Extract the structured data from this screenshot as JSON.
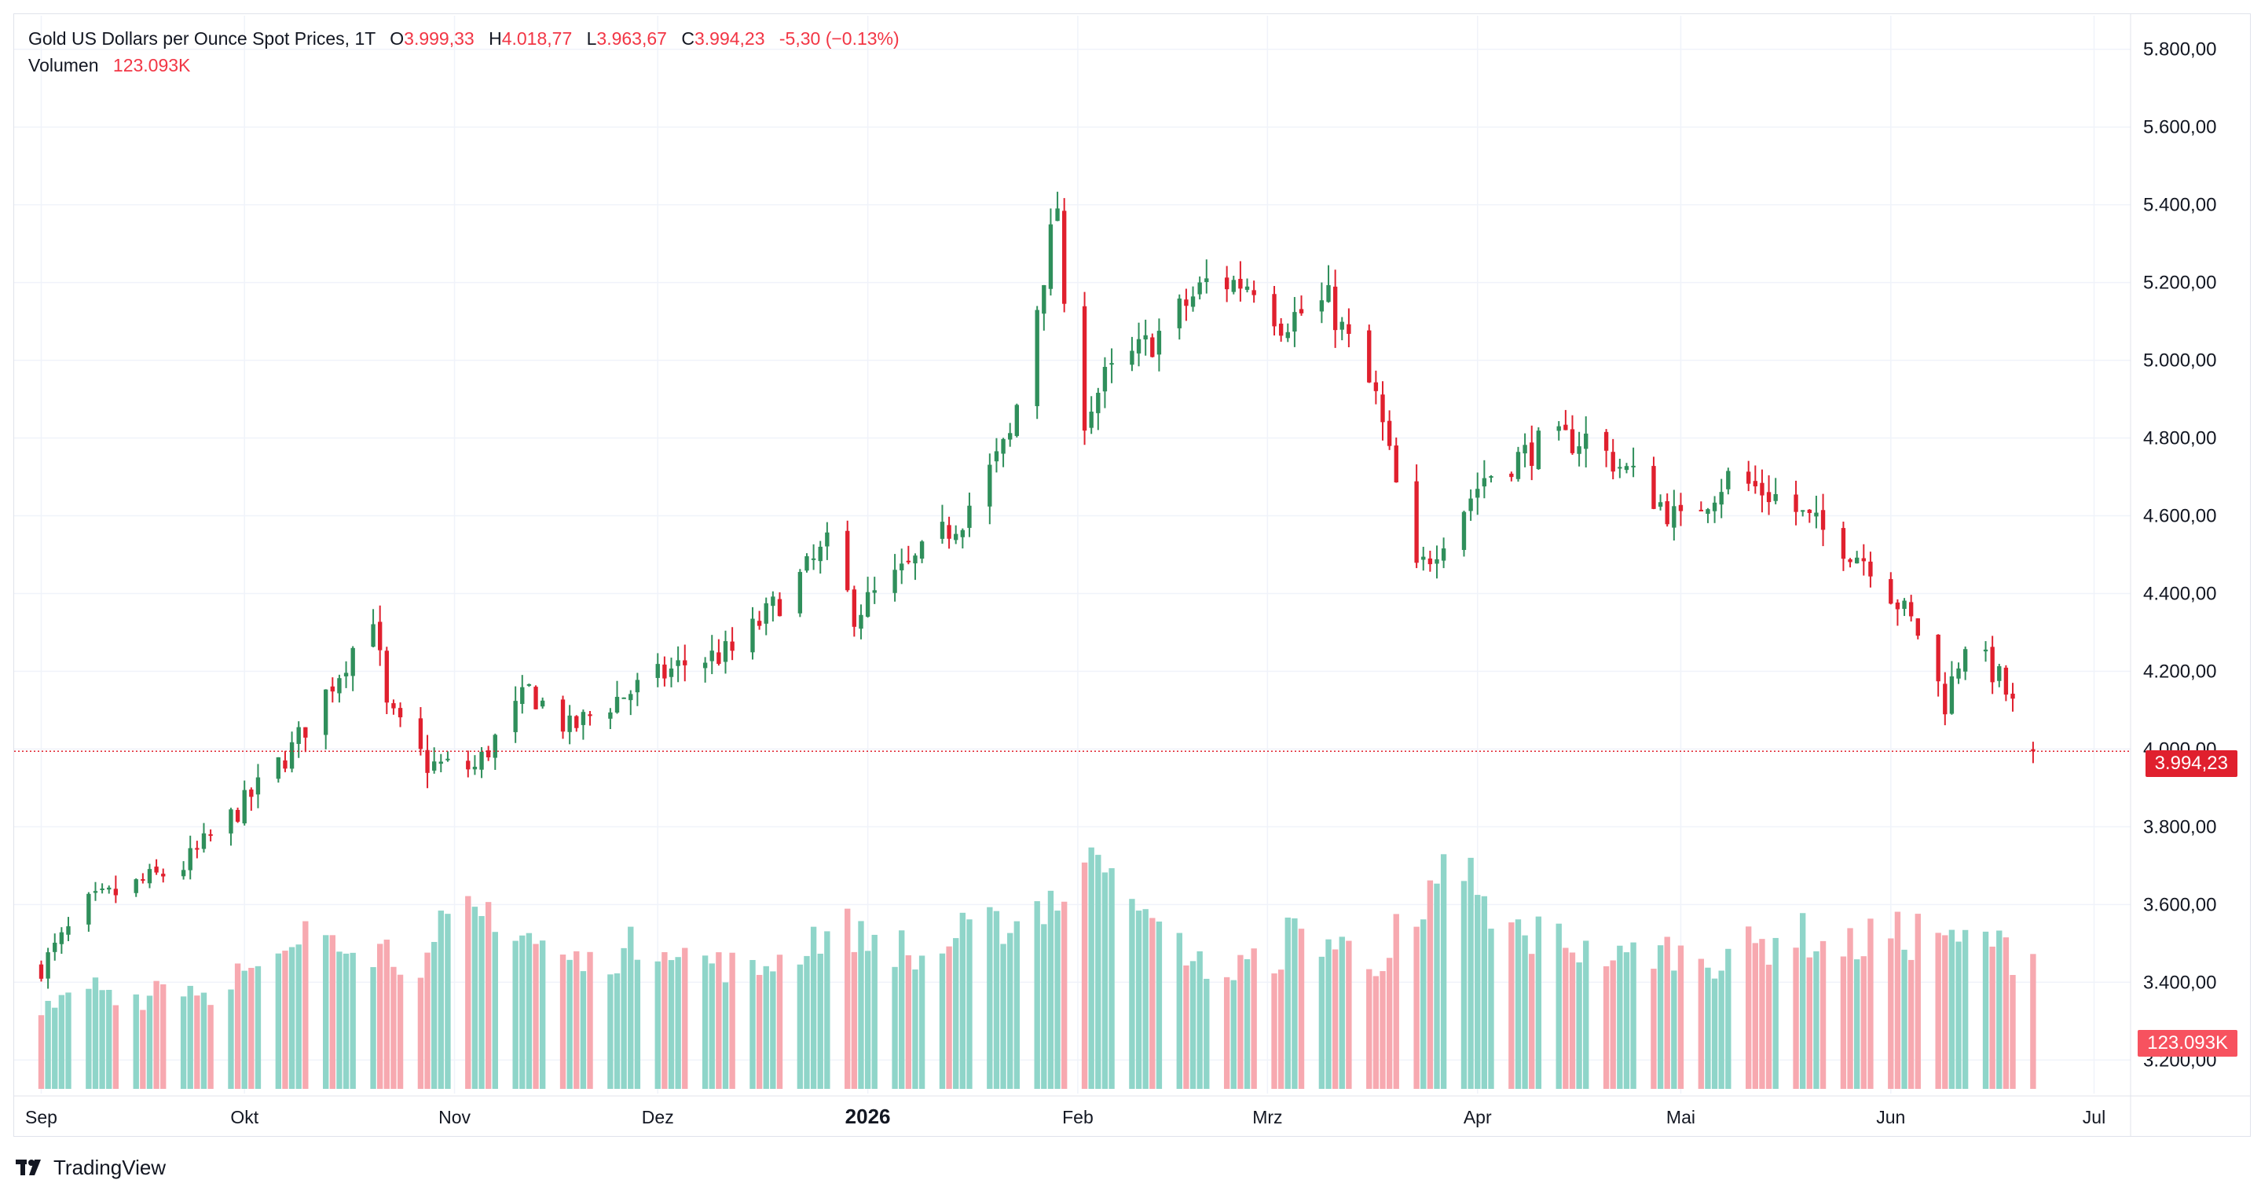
{
  "legend": {
    "symbol": "Gold US Dollars per Ounce Spot Prices, 1T",
    "open_label": "O",
    "open_value": "3.999,33",
    "high_label": "H",
    "high_value": "4.018,77",
    "low_label": "L",
    "low_value": "3.963,67",
    "close_label": "C",
    "close_value": "3.994,23",
    "change": "-5,30 (−0.13%)",
    "volume_label": "Volumen",
    "volume_value": "123.093K"
  },
  "last_price_badge": "3.994,23",
  "volume_badge": "123.093K",
  "branding": {
    "name": "TradingView",
    "logo_icon": "tradingview-logo-icon"
  },
  "colors": {
    "up": "#26a69a",
    "up_candle": "#2f8f5b",
    "down": "#e0202e",
    "up_volume": "#8fd5c9",
    "down_volume": "#f7a9b0",
    "grid": "#f0f3fa"
  },
  "chart_data": {
    "type": "candlestick",
    "title": "Gold US Dollars per Ounce Spot Prices, 1T",
    "y_ticks": [
      "3.200,00",
      "3.400,00",
      "3.600,00",
      "3.800,00",
      "4.000,00",
      "4.200,00",
      "4.400,00",
      "4.600,00",
      "4.800,00",
      "5.000,00",
      "5.200,00",
      "5.400,00",
      "5.600,00",
      "5.800,00"
    ],
    "y_tick_values": [
      3200,
      3400,
      3600,
      3800,
      4000,
      4200,
      4400,
      4600,
      4800,
      5000,
      5200,
      5400,
      5600,
      5800
    ],
    "ylim": [
      3150,
      5850
    ],
    "x_ticks": [
      "Sep",
      "Okt",
      "Nov",
      "Dez",
      "2026",
      "Feb",
      "Mrz",
      "Apr",
      "Mai",
      "Jun",
      "Jul"
    ],
    "x_tick_dates": [
      "2025-09-01",
      "2025-10-01",
      "2025-11-01",
      "2025-12-01",
      "2026-01-01",
      "2026-02-01",
      "2026-03-01",
      "2026-04-01",
      "2026-05-01",
      "2026-06-01",
      "2026-07-01"
    ],
    "bold_x_tick": "2026",
    "last_price": 3994.23,
    "volume_last": "123.093K",
    "grid": true,
    "close_path": [
      [
        "2025-09-01",
        3440
      ],
      [
        "2025-09-08",
        3600
      ],
      [
        "2025-09-15",
        3650
      ],
      [
        "2025-09-22",
        3700
      ],
      [
        "2025-10-01",
        3860
      ],
      [
        "2025-10-08",
        4000
      ],
      [
        "2025-10-15",
        4200
      ],
      [
        "2025-10-20",
        4350
      ],
      [
        "2025-10-22",
        4100
      ],
      [
        "2025-10-28",
        3960
      ],
      [
        "2025-11-04",
        3950
      ],
      [
        "2025-11-12",
        4150
      ],
      [
        "2025-11-18",
        4050
      ],
      [
        "2025-11-25",
        4130
      ],
      [
        "2025-12-05",
        4220
      ],
      [
        "2025-12-12",
        4250
      ],
      [
        "2025-12-20",
        4400
      ],
      [
        "2025-12-26",
        4520
      ],
      [
        "2025-12-30",
        4350
      ],
      [
        "2026-01-08",
        4480
      ],
      [
        "2026-01-15",
        4600
      ],
      [
        "2026-01-22",
        4800
      ],
      [
        "2026-01-29",
        5400
      ],
      [
        "2026-01-31",
        4800
      ],
      [
        "2026-02-05",
        4950
      ],
      [
        "2026-02-12",
        5050
      ],
      [
        "2026-02-20",
        5200
      ],
      [
        "2026-02-27",
        5200
      ],
      [
        "2026-03-03",
        5100
      ],
      [
        "2026-03-10",
        5150
      ],
      [
        "2026-03-17",
        4900
      ],
      [
        "2026-03-23",
        4450
      ],
      [
        "2026-03-27",
        4550
      ],
      [
        "2026-04-02",
        4700
      ],
      [
        "2026-04-10",
        4780
      ],
      [
        "2026-04-17",
        4800
      ],
      [
        "2026-04-24",
        4700
      ],
      [
        "2026-05-01",
        4580
      ],
      [
        "2026-05-08",
        4700
      ],
      [
        "2026-05-15",
        4650
      ],
      [
        "2026-05-22",
        4560
      ],
      [
        "2026-05-29",
        4480
      ],
      [
        "2026-06-05",
        4300
      ],
      [
        "2026-06-09",
        4120
      ],
      [
        "2026-06-12",
        4280
      ],
      [
        "2026-06-17",
        4180
      ],
      [
        "2026-06-22",
        4000
      ]
    ],
    "volume_series": [
      0.3,
      0.34,
      0.4,
      0.38,
      0.36,
      0.42,
      0.4,
      0.37,
      0.45,
      0.43,
      0.5,
      0.58,
      0.62,
      0.6,
      0.55,
      0.52,
      0.5,
      0.62,
      0.66,
      0.7,
      0.6,
      0.56,
      0.5,
      0.48,
      0.52,
      0.55,
      0.58,
      0.52,
      0.5,
      0.48,
      0.45,
      0.5,
      0.55,
      0.6,
      0.62,
      0.58,
      0.55,
      0.5,
      0.55,
      0.6,
      0.62,
      0.65,
      0.72,
      0.75,
      0.85,
      0.95,
      0.8,
      0.62,
      0.55,
      0.48,
      0.44,
      0.48,
      0.52,
      0.6,
      0.58,
      0.55,
      0.5,
      0.52,
      0.6,
      0.72,
      0.85,
      0.7,
      0.62,
      0.58,
      0.6,
      0.55,
      0.52,
      0.5,
      0.53,
      0.54,
      0.52,
      0.5,
      0.55,
      0.56,
      0.6,
      0.58,
      0.55,
      0.56,
      0.6,
      0.58,
      0.62,
      0.55,
      0.58,
      0.55,
      0.52
    ],
    "volume_ylim": [
      0,
      1
    ]
  }
}
